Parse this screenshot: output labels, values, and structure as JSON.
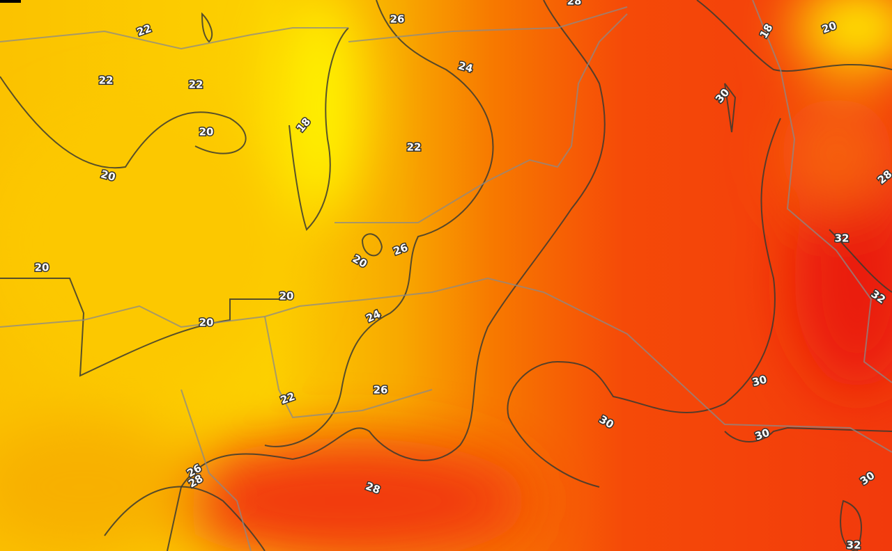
{
  "map": {
    "contour_labels": [
      22,
      22,
      22,
      20,
      20,
      18,
      26,
      28,
      24,
      22,
      26,
      20,
      20,
      20,
      20,
      24,
      30,
      18,
      20,
      28,
      32,
      32,
      30,
      26,
      22,
      30,
      30,
      26,
      28,
      28,
      30,
      32
    ]
  }
}
